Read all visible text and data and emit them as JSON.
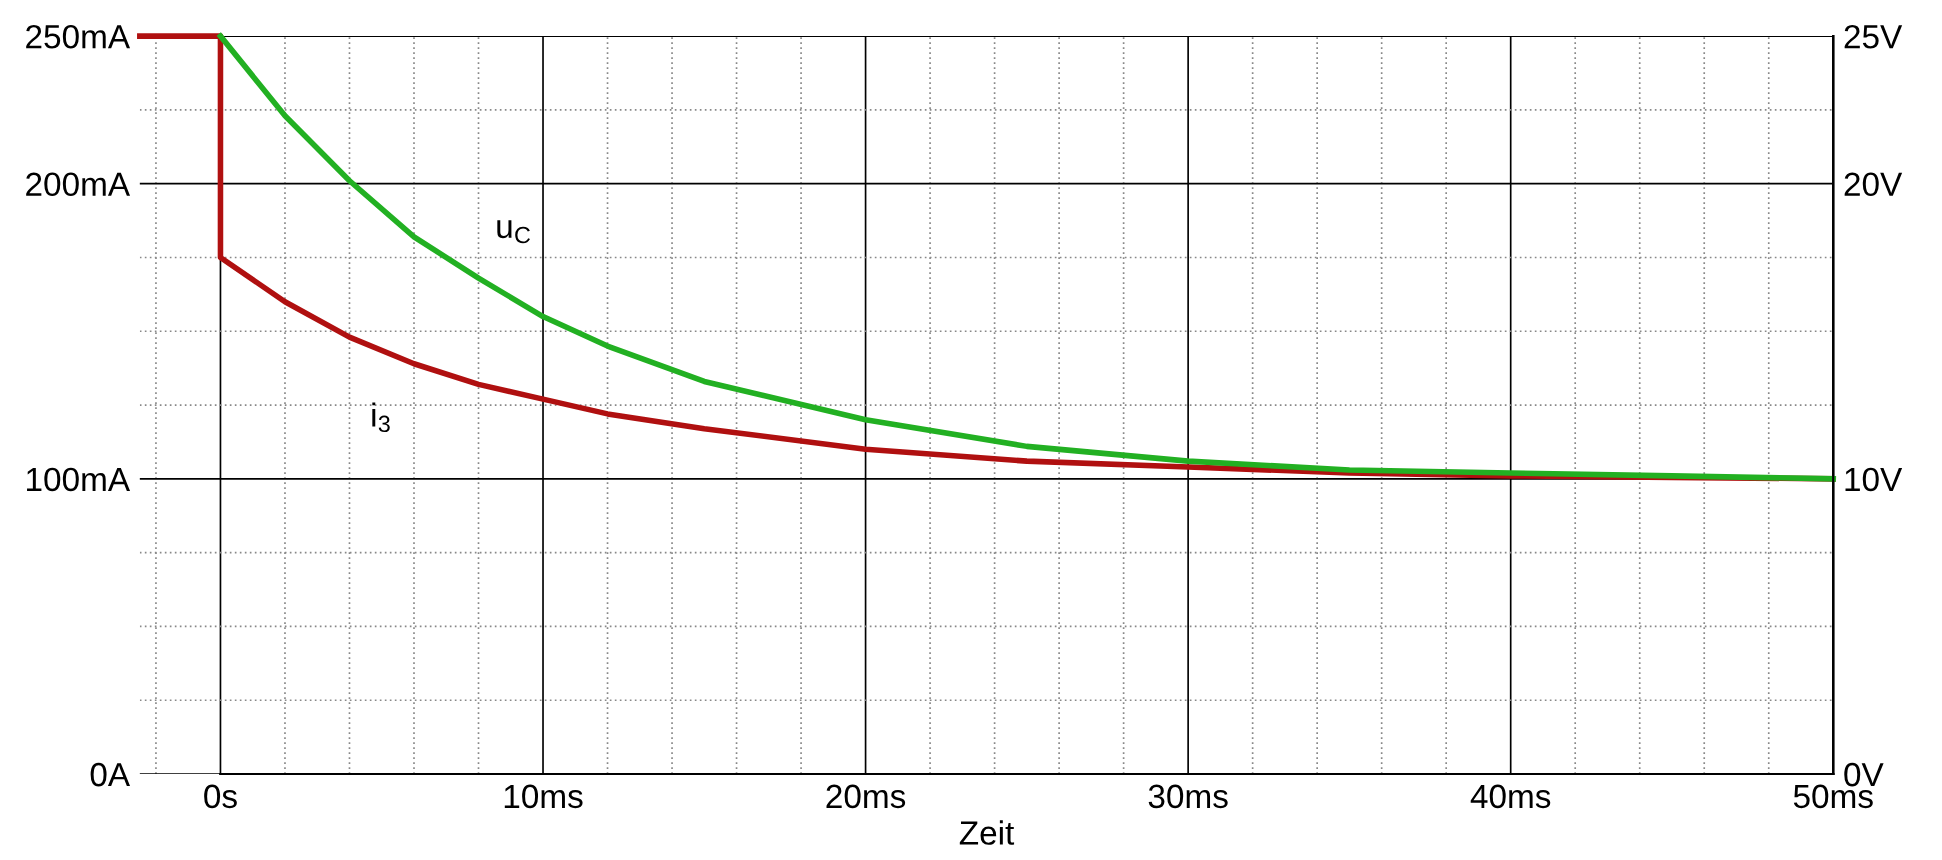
{
  "chart_data": {
    "type": "line",
    "xlabel": "Zeit",
    "xlim": [
      -2.5,
      50
    ],
    "ylim": [
      0,
      250
    ],
    "y2lim": [
      0,
      25
    ],
    "xticks": [
      {
        "value": 0,
        "label": "0s"
      },
      {
        "value": 10,
        "label": "10ms"
      },
      {
        "value": 20,
        "label": "20ms"
      },
      {
        "value": 30,
        "label": "30ms"
      },
      {
        "value": 40,
        "label": "40ms"
      },
      {
        "value": 50,
        "label": "50ms"
      }
    ],
    "yticks": [
      {
        "value": 0,
        "label": "0A"
      },
      {
        "value": 100,
        "label": "100mA"
      },
      {
        "value": 200,
        "label": "200mA"
      },
      {
        "value": 250,
        "label": "250mA"
      }
    ],
    "y2ticks": [
      {
        "value": 0,
        "label": "0V"
      },
      {
        "value": 10,
        "label": "10V"
      },
      {
        "value": 20,
        "label": "20V"
      },
      {
        "value": 25,
        "label": "25V"
      }
    ],
    "grid": true,
    "line_style": "solid",
    "series": [
      {
        "name": "u$_{C}$",
        "color": "#22b022",
        "axis": "y2",
        "x": [
          0,
          2,
          4,
          6,
          8,
          10,
          12,
          15,
          20,
          25,
          30,
          35,
          40,
          45,
          50
        ],
        "values": [
          25,
          22.3,
          20.1,
          18.2,
          16.8,
          15.5,
          14.5,
          13.3,
          12,
          11.1,
          10.6,
          10.3,
          10.2,
          10.1,
          10.0
        ]
      },
      {
        "name": "i$_{3}$",
        "color": "#b01010",
        "x": [
          -2.5,
          0,
          0,
          2,
          4,
          6,
          8,
          10,
          12,
          15,
          20,
          25,
          30,
          35,
          40,
          45,
          50
        ],
        "values": [
          250,
          250,
          175,
          160,
          148,
          139,
          132,
          127,
          122,
          117,
          110,
          106,
          104,
          102,
          101,
          100.5,
          100
        ]
      }
    ]
  }
}
